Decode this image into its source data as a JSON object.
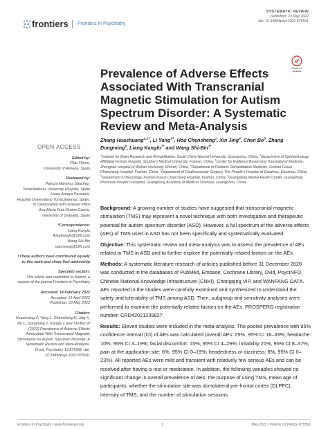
{
  "header": {
    "brand": "frontiers",
    "journal": "Frontiers in Psychiatry",
    "article_type": "SYSTEMATIC REVIEW",
    "published": "published: 23 May 2022",
    "doi": "doi: 10.3389/fpsyt.2022.875591",
    "badge": "Check for updates"
  },
  "title": "Prevalence of Adverse Effects Associated With Transcranial Magnetic Stimulation for Autism Spectrum Disorder: A Systematic Review and Meta-Analysis",
  "authors": [
    [
      "Zhang Huashuang",
      "1,2†"
    ],
    [
      ", Li Yang",
      "3†"
    ],
    [
      ", Hou Chensheng",
      "1"
    ],
    [
      ", Xin Jing",
      "4"
    ],
    [
      ", Chen Bo",
      "5"
    ],
    [
      ", Zhang Dongming",
      "6"
    ],
    [
      ", Liang Kangfu",
      "7*"
    ],
    [
      " and Wang Shi-Bin",
      "1*"
    ]
  ],
  "affiliations": [
    [
      "1",
      "Institute for Brain Research and Rehabilitation, South China Normal University, Guangzhou, China, "
    ],
    [
      "2",
      "Department of Ophthalmology, Affiliated Foshan Hospital, Southern Medical University, Foshan, China, "
    ],
    [
      "3",
      "Center for Evidence-Based and Translational Medicine, Zhongnan Hospital of Wuhan University, Wuhan, China, "
    ],
    [
      "4",
      "Department of Pediatric Rehabilitation Medicine, Foshan Fosun Chancheng Hospital, Foshan, China, "
    ],
    [
      "5",
      "Department of Cardiovascular Surgery, The People's Hospital of Gaozhou, Gaozhou, China, "
    ],
    [
      "6",
      "Department of Neurology, Foshan Fosun Chancheng Hospital, Foshan, China, "
    ],
    [
      "7",
      "Guangdong Mental Health Center, Guangdong Provincial People's Hospital, Guangdong Academy of Medical Sciences, Guangzhou, China"
    ]
  ],
  "abstract": [
    {
      "label": "Background:",
      "text": "A growing number of studies have suggested that transcranial magnetic stimulation (TMS) may represent a novel technique with both investigative and therapeutic potential for autism spectrum disorder (ASD). However, a full spectrum of the adverse effects (AEs) of TMS used in ASD has not been specifically and systematically evaluated."
    },
    {
      "label": "Objective:",
      "text": "This systematic review and meta-analysis was to assess the prevalence of AEs related to TMS in ASD and to further explore the potentially related factors on the AEs."
    },
    {
      "label": "Methods:",
      "text": "A systematic literature research of articles published before 31 December 2020 was conducted in the databases of PubMed, Embase, Cochrane Library, Ovid, PsycINFO, Chinese National Knowledge Infrastructure (CNKI), Chongqing VIP, and WANFANG DATA. AEs reported in the studies were carefully examined and synthesized to understand the safety and tolerability of TMS among ASD. Then, subgroup and sensitivity analyses were performed to examine the potentially related factors on the AEs. PROSPERO registration number: CRD42021239827."
    },
    {
      "label": "Results:",
      "text": "Eleven studies were included in the meta-analysis. The pooled prevalence with 95% confidence interval (CI) of AEs was calculated (overall AEs: 25%, 95% CI 18–33%; headache: 10%, 95% CI 3–19%; facial discomfort: 15%, 95% CI 4–29%; irritability 21%, 95% CI 8–37%; pain at the application site: 6%, 95% CI 0–19%; headedness or dizziness: 8%, 95% CI 0–23%). All reported AEs were mild and transient with relatively few serious AEs and can be resolved after having a rest or medication. In addition, the following variables showed no significant change in overall prevalence of AEs: the purpose of using TMS, mean age of participants, whether the stimulation site was dorsolateral pre-frontal cortex (DLPFC), intensity of TMS, and the number of stimulation sessions."
    }
  ],
  "sidebar": {
    "open_access": "OPEN ACCESS",
    "blocks": [
      {
        "label": "Edited by:",
        "lines": [
          "Pilar Flores,",
          "University of Almeria, Spain"
        ]
      },
      {
        "label": "Reviewed by:",
        "lines": [
          "Patricia Martínez Sánchez,",
          "Torrecárdenas University Hospital, Spain",
          "Laura Amaya Pascasio,",
          "Hospital Universitario Torrecárdenas, Spain, in collaboration with reviewer PMS",
          "Ana María Ruiz-Ruano García,",
          "University of Granada, Spain"
        ]
      },
      {
        "label": "*Correspondence:",
        "lines": [
          "Liang Kangfu",
          "lkingkangfu@126.com",
          "Wang Shi-Bin",
          "spiorwang@126.com"
        ]
      },
      {
        "label": "†These authors have contributed equally to this work and share first authorship",
        "lines": []
      },
      {
        "label": "Specialty section:",
        "lines": [
          "This article was submitted to Autism, a section of the journal Frontiers in Psychiatry"
        ]
      },
      {
        "label": "Received: 14 February 2022",
        "lines": [
          "Accepted: 19 April 2022",
          "Published: 23 May 2022"
        ]
      },
      {
        "label": "Citation:",
        "lines": [
          "Huashuang Z, Yang L, Chensheng H, Jing X, Bo C, Dongming Z, Kangfu L and Shi-Bin W (2022) Prevalence of Adverse Effects Associated With Transcranial Magnetic Stimulation for Autism Spectrum Disorder: A Systematic Review and Meta-Analysis. Front. Psychiatry 13:875591. doi: 10.3389/fpsyt.2022.875591"
        ]
      }
    ]
  },
  "footer": {
    "left": "Frontiers in Psychiatry | www.frontiersin.org",
    "page": "1",
    "right": "May 2022 | Volume 13 | Article 875591"
  }
}
